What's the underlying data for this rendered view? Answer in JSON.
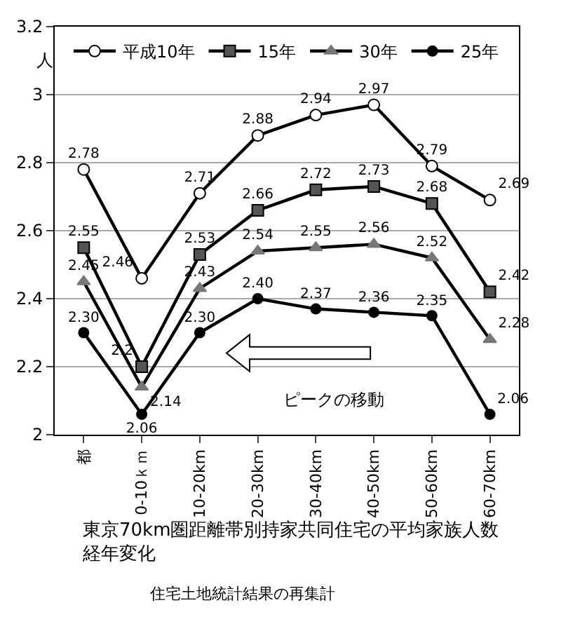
{
  "chart_data": {
    "type": "line",
    "title": "東京70km圏距離帯別持家共同住宅の平均家族人数経年変化",
    "subtitle": "住宅土地統計結果の再集計",
    "ylabel": "人",
    "categories": [
      "都",
      "0-10ｋｍ",
      "10-20km",
      "20-30km",
      "30-40km",
      "40-50km",
      "50-60km",
      "60-70km"
    ],
    "series": [
      {
        "name": "平成10年",
        "color": "#000000",
        "marker": "circle",
        "values": [
          2.78,
          2.46,
          2.71,
          2.88,
          2.94,
          2.97,
          2.79,
          2.69
        ],
        "value_labels": [
          "2.78",
          "2.46",
          "2.71",
          "2.88",
          "2.94",
          "2.97",
          "2.79",
          "2.69"
        ]
      },
      {
        "name": "15年",
        "color": "#000000",
        "marker": "square",
        "values": [
          2.55,
          2.2,
          2.53,
          2.66,
          2.72,
          2.73,
          2.68,
          2.42
        ],
        "value_labels": [
          "2.55",
          "2.2",
          "2.53",
          "2.66",
          "2.72",
          "2.73",
          "2.68",
          "2.42"
        ]
      },
      {
        "name": "30年",
        "color": "#000000",
        "marker": "triangle",
        "values": [
          2.45,
          2.14,
          2.43,
          2.54,
          2.55,
          2.56,
          2.52,
          2.28
        ],
        "value_labels": [
          "2.45",
          "2.14",
          "2.43",
          "2.54",
          "2.55",
          "2.56",
          "2.52",
          "2.28"
        ]
      },
      {
        "name": "25年",
        "color": "#000000",
        "marker": "circle",
        "values": [
          2.3,
          2.06,
          2.3,
          2.4,
          2.37,
          2.36,
          2.35,
          2.06
        ],
        "value_labels": [
          "2.30",
          "2.06",
          "2.30",
          "2.40",
          "2.37",
          "2.36",
          "2.35",
          "2.06"
        ]
      }
    ],
    "ylim": [
      2,
      3.2
    ],
    "yticks": [
      2,
      2.2,
      2.4,
      2.6,
      2.8,
      3,
      3.2
    ],
    "grid": "y",
    "legend": "top",
    "line_style": "solid",
    "annotations": [
      "ピークの移動"
    ]
  }
}
